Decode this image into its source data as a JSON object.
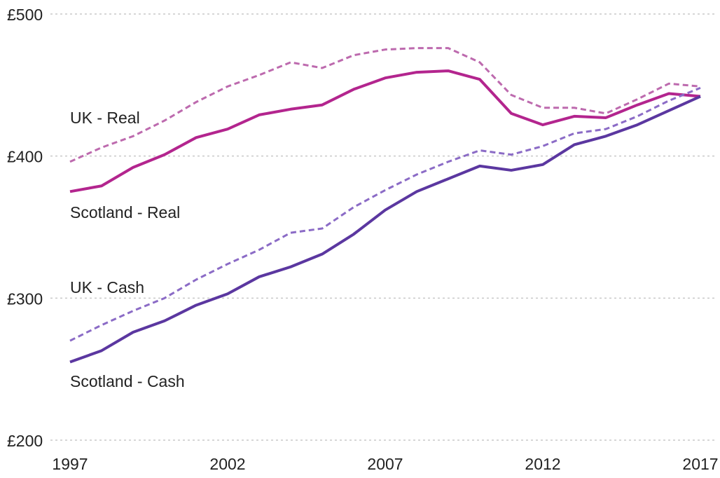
{
  "chart_data": {
    "type": "line",
    "x": [
      1997,
      1998,
      1999,
      2000,
      2001,
      2002,
      2003,
      2004,
      2005,
      2006,
      2007,
      2008,
      2009,
      2010,
      2011,
      2012,
      2013,
      2014,
      2015,
      2016,
      2017
    ],
    "xlim": [
      1997,
      2017
    ],
    "xticks": [
      1997,
      2002,
      2007,
      2012,
      2017
    ],
    "ylim": [
      200,
      500
    ],
    "yticks": [
      {
        "value": 200,
        "label": "£200"
      },
      {
        "value": 300,
        "label": "£300"
      },
      {
        "value": 400,
        "label": "£400"
      },
      {
        "value": 500,
        "label": "£500"
      }
    ],
    "grid": true,
    "series": [
      {
        "name": "UK - Real",
        "color": "#bd6aae",
        "style": "dashed",
        "values": [
          396,
          406,
          414,
          425,
          438,
          449,
          457,
          466,
          462,
          471,
          475,
          476,
          476,
          466,
          443,
          434,
          434,
          430,
          440,
          451,
          449
        ]
      },
      {
        "name": "Scotland - Real",
        "color": "#b3258e",
        "style": "solid",
        "values": [
          375,
          379,
          392,
          401,
          413,
          419,
          429,
          433,
          436,
          447,
          455,
          459,
          460,
          454,
          430,
          422,
          428,
          427,
          436,
          444,
          442
        ]
      },
      {
        "name": "UK - Cash",
        "color": "#8b6bc6",
        "style": "dashed",
        "values": [
          270,
          281,
          291,
          300,
          313,
          324,
          334,
          346,
          349,
          364,
          376,
          387,
          396,
          404,
          401,
          407,
          416,
          419,
          428,
          439,
          448
        ]
      },
      {
        "name": "Scotland - Cash",
        "color": "#5b37a0",
        "style": "solid",
        "values": [
          255,
          263,
          276,
          284,
          295,
          303,
          315,
          322,
          331,
          345,
          362,
          375,
          384,
          393,
          390,
          394,
          408,
          414,
          422,
          432,
          442
        ]
      }
    ]
  }
}
